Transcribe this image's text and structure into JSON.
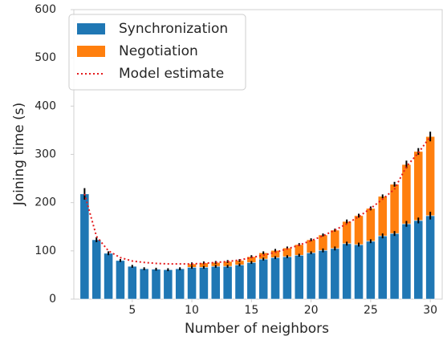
{
  "chart_data": {
    "type": "bar",
    "stacked": true,
    "x_label": "Number of neighbors",
    "y_label": "Joining time (s)",
    "x": [
      1,
      2,
      3,
      4,
      5,
      6,
      7,
      8,
      9,
      10,
      11,
      12,
      13,
      14,
      15,
      16,
      17,
      18,
      19,
      20,
      21,
      22,
      23,
      24,
      25,
      26,
      27,
      28,
      29,
      30
    ],
    "series": [
      {
        "name": "Synchronization",
        "color": "#1f77b4",
        "values": [
          218,
          123,
          95,
          80,
          68,
          63,
          62,
          61,
          63,
          66,
          66,
          68,
          68,
          71,
          76,
          83,
          86,
          88,
          91,
          96,
          101,
          105,
          115,
          113,
          120,
          131,
          136,
          156,
          163,
          173
        ],
        "errors": [
          12,
          5,
          4,
          3,
          3,
          3,
          3,
          3,
          3,
          3,
          3,
          3,
          3,
          3,
          3,
          3,
          3,
          3,
          3,
          3,
          4,
          4,
          4,
          4,
          4,
          5,
          5,
          6,
          6,
          8
        ]
      },
      {
        "name": "Negotiation",
        "color": "#ff7f0e",
        "values": [
          0,
          0,
          0,
          0,
          0,
          0,
          0,
          0,
          0,
          7,
          9,
          8,
          10,
          9,
          12,
          13,
          15,
          18,
          22,
          27,
          32,
          38,
          46,
          60,
          68,
          82,
          102,
          123,
          143,
          164
        ],
        "errors": [
          null,
          null,
          null,
          null,
          null,
          null,
          null,
          null,
          null,
          3,
          3,
          3,
          3,
          3,
          3,
          3,
          3,
          3,
          3,
          3,
          3,
          3,
          4,
          4,
          4,
          4,
          5,
          8,
          7,
          10
        ]
      },
      {
        "name": "Model estimate",
        "color": "#e41a1c",
        "type": "line",
        "dotted": true,
        "values": [
          218,
          130,
          100,
          86,
          79,
          76,
          74,
          73,
          73,
          73,
          74,
          76,
          78,
          81,
          86,
          91,
          97,
          104,
          112,
          121,
          131,
          143,
          156,
          171,
          188,
          207,
          228,
          275,
          303,
          337
        ]
      }
    ],
    "xlim": [
      0.1,
      31
    ],
    "xticks": [
      5,
      10,
      15,
      20,
      25,
      30
    ],
    "ylim": [
      0,
      600
    ],
    "yticks": [
      0,
      100,
      200,
      300,
      400,
      500,
      600
    ],
    "grid": false,
    "legend": "upper left"
  }
}
